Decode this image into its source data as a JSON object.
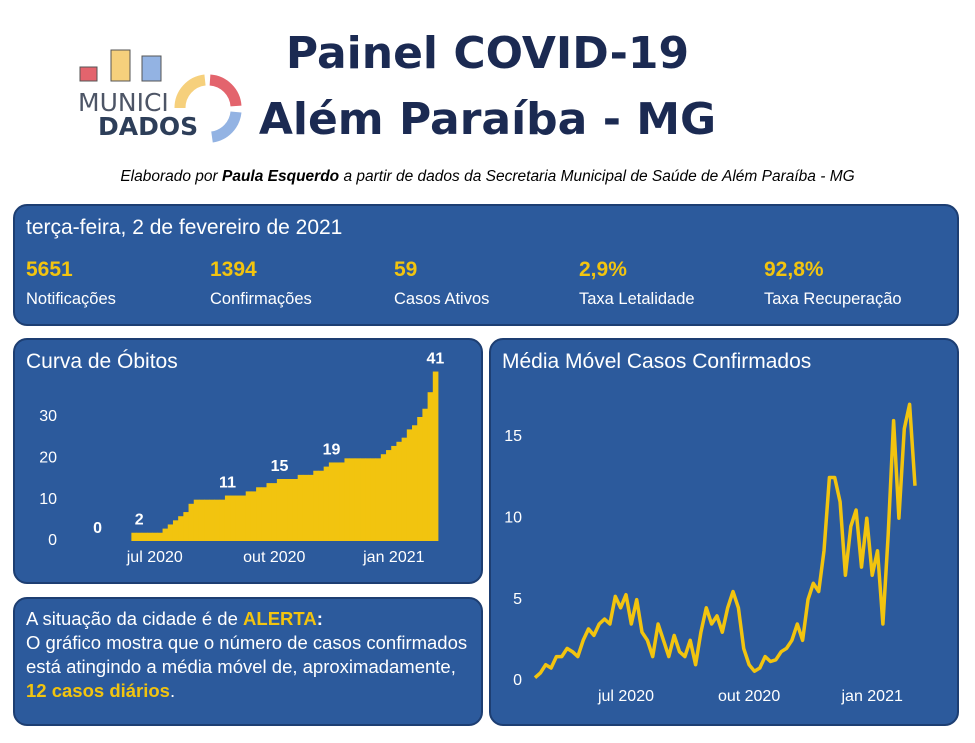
{
  "header": {
    "logo_top": "MUNICI",
    "logo_bottom": "DADOS",
    "title_line1": "Painel COVID-19",
    "title_line2": "Além Paraíba - MG",
    "credit_prefix": "Elaborado por ",
    "credit_author": "Paula Esquerdo",
    "credit_suffix": " a partir de dados da Secretaria Municipal de Saúde de Além Paraíba - MG"
  },
  "summary": {
    "date": "terça-feira, 2 de fevereiro de 2021",
    "stats": [
      {
        "value": "5651",
        "label": "Notificações"
      },
      {
        "value": "1394",
        "label": "Confirmações"
      },
      {
        "value": "59",
        "label": "Casos Ativos"
      },
      {
        "value": "2,9%",
        "label": "Taxa Letalidade"
      },
      {
        "value": "92,8%",
        "label": "Taxa Recuperação"
      }
    ]
  },
  "alert": {
    "prefix": "A situação da cidade é de ",
    "status": "ALERTA",
    "status_end": ":",
    "text": "O gráfico mostra que o número de casos confirmados está atingindo a média móvel de, aproximadamente, ",
    "highlight": "12 casos diários",
    "end": "."
  },
  "chart_data": [
    {
      "type": "step-area",
      "title": "Curva de Óbitos",
      "color": "#f2c40f",
      "categories": [
        null,
        null,
        null,
        null,
        null,
        null,
        null,
        null,
        null,
        null,
        null,
        "jul 2020",
        null,
        null,
        null,
        null,
        null,
        null,
        null,
        null,
        null,
        null,
        null,
        null,
        null,
        null,
        null,
        null,
        null,
        null,
        null,
        null,
        null,
        null,
        "out 2020",
        null,
        null,
        null,
        null,
        null,
        null,
        null,
        null,
        null,
        null,
        null,
        null,
        null,
        null,
        null,
        null,
        null,
        null,
        null,
        null,
        null,
        null,
        "jan 2021",
        null,
        null,
        null,
        null,
        null,
        null,
        null,
        null
      ],
      "values": [
        0,
        0,
        0,
        0,
        0,
        0,
        0,
        2,
        2,
        2,
        2,
        2,
        2,
        3,
        4,
        5,
        6,
        7,
        9,
        10,
        10,
        10,
        10,
        10,
        10,
        11,
        11,
        11,
        11,
        12,
        12,
        13,
        13,
        14,
        14,
        15,
        15,
        15,
        15,
        16,
        16,
        16,
        17,
        17,
        18,
        19,
        19,
        19,
        20,
        20,
        20,
        20,
        20,
        20,
        20,
        21,
        22,
        23,
        24,
        25,
        27,
        28,
        30,
        32,
        36,
        41
      ],
      "value_labels": [
        "0",
        null,
        null,
        null,
        null,
        null,
        null,
        null,
        "2",
        null,
        null,
        null,
        null,
        null,
        null,
        null,
        null,
        null,
        null,
        null,
        null,
        null,
        null,
        null,
        null,
        "11",
        null,
        null,
        null,
        null,
        null,
        null,
        null,
        null,
        null,
        "15",
        null,
        null,
        null,
        null,
        null,
        null,
        null,
        null,
        null,
        "19",
        null,
        null,
        null,
        null,
        null,
        null,
        null,
        null,
        null,
        null,
        null,
        null,
        null,
        null,
        null,
        null,
        null,
        null,
        null,
        "41"
      ],
      "ylim": [
        0,
        45
      ],
      "yticks": [
        0,
        10,
        20,
        30
      ]
    },
    {
      "type": "line",
      "title": "Média Móvel Casos Confirmados",
      "color": "#f2c40f",
      "categories": [
        null,
        null,
        null,
        null,
        null,
        null,
        null,
        null,
        null,
        null,
        null,
        null,
        null,
        null,
        null,
        null,
        null,
        "jul 2020",
        null,
        null,
        null,
        null,
        null,
        null,
        null,
        null,
        null,
        null,
        null,
        null,
        null,
        null,
        null,
        null,
        null,
        null,
        null,
        null,
        null,
        null,
        "out 2020",
        null,
        null,
        null,
        null,
        null,
        null,
        null,
        null,
        null,
        null,
        null,
        null,
        null,
        null,
        null,
        null,
        null,
        null,
        null,
        null,
        null,
        null,
        "jan 2021",
        null,
        null,
        null,
        null,
        null,
        null,
        null,
        null
      ],
      "values": [
        0.2,
        0.5,
        1,
        0.8,
        1.5,
        1.5,
        2,
        1.8,
        1.5,
        2.5,
        3.2,
        2.8,
        3.5,
        3.8,
        3.5,
        5.2,
        4.5,
        5.3,
        3.5,
        5,
        3,
        2.5,
        1.5,
        3.5,
        2.5,
        1.5,
        2.8,
        1.8,
        1.5,
        2.5,
        1,
        3,
        4.5,
        3.5,
        4,
        3,
        4.5,
        5.5,
        4.5,
        2,
        1,
        0.6,
        0.8,
        1.5,
        1.2,
        1.3,
        1.8,
        2,
        2.5,
        3.5,
        2.5,
        5,
        6,
        5.5,
        8,
        12.5,
        12.5,
        11,
        6.5,
        9.5,
        10.5,
        7,
        10,
        6.5,
        8,
        3.5,
        9,
        16,
        10,
        15.5,
        17,
        12
      ],
      "ylim": [
        0,
        18
      ],
      "yticks": [
        0,
        5,
        10,
        15
      ]
    }
  ]
}
